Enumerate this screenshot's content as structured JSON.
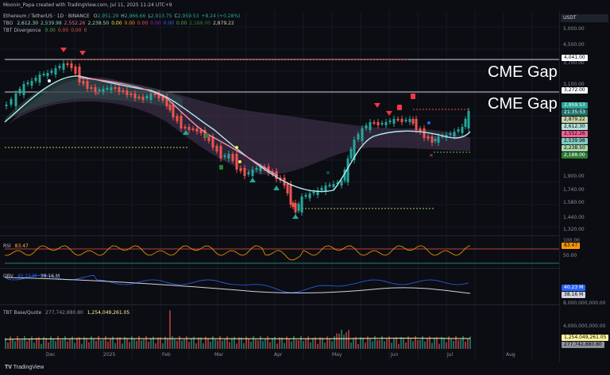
{
  "header": {
    "attribution": "Moonin_Papa created with TradingView.com, Jul 11, 2025 11:24 UTC+9"
  },
  "legend": {
    "symbol": "Ethereum / TetherUS · 1D · BINANCE",
    "ohlc": [
      {
        "k": "O",
        "v": "2,951.29"
      },
      {
        "k": "H",
        "v": "2,966.66"
      },
      {
        "k": "L",
        "v": "2,913.75"
      },
      {
        "k": "C",
        "v": "2,959.53"
      },
      {
        "k": "",
        "v": "+8.24 (+0.28%)"
      }
    ],
    "tbo_label": "TBO",
    "tbo_values": [
      "2,612.30",
      "2,539.98",
      "2,552.26",
      "2,238.50",
      "0.00",
      "0.00",
      "0.00",
      "0.00",
      "0.00",
      "0.00",
      "2,188.00",
      "2,879.22"
    ],
    "divergence_label": "TBT Divergence",
    "divergence_values": [
      "0.00",
      "0.00",
      "0.00",
      "0"
    ]
  },
  "price_axis": {
    "currency": "USDT",
    "ticks": [
      "5,000.00",
      "4,500.00",
      "3,700.00",
      "3,100.00",
      "2,700.00",
      "2,300.00",
      "1,900.00",
      "1,740.00",
      "1,580.00",
      "1,440.00",
      "1,320.00"
    ],
    "level_tags": [
      "4,041.00",
      "3,272.00"
    ],
    "value_tags": [
      {
        "v": "2,959.53",
        "bg": "#26a69a",
        "fg": "#ffffff"
      },
      {
        "v": "21:35:53",
        "bg": "#1d6e66",
        "fg": "#ffffff"
      },
      {
        "v": "2,879.22",
        "bg": "#c9d2a4",
        "fg": "#000000"
      },
      {
        "v": "2,612.30",
        "bg": "#b2dfdb",
        "fg": "#000000"
      },
      {
        "v": "2,552.26",
        "bg": "#f06292",
        "fg": "#000000"
      },
      {
        "v": "2,539.98",
        "bg": "#80cbc4",
        "fg": "#000000"
      },
      {
        "v": "2,238.50",
        "bg": "#a5d6a7",
        "fg": "#000000"
      },
      {
        "v": "2,188.00",
        "bg": "#2e7d32",
        "fg": "#ffffff"
      }
    ]
  },
  "annotations": {
    "cme_gap_1": "CME Gap",
    "cme_gap_2": "CME Gap"
  },
  "rsi": {
    "label": "RSI",
    "value": "83.47",
    "ticks": [
      "100.00",
      "50.00"
    ],
    "tag": "83.47"
  },
  "obv": {
    "label": "OBV",
    "value1": "40.23 M",
    "value2": "38.16 M",
    "tags": [
      "40.23 M",
      "38.16 M"
    ]
  },
  "tbt": {
    "label": "TBT Base/Quote",
    "value1": "277,742,880.80",
    "value2": "1,254,049,261.05",
    "ticks": [
      "8,000,000,000.00",
      "4,000,000,000.00"
    ],
    "tags": [
      "1,254,049,261.05",
      "277,742,880.80"
    ]
  },
  "time_axis": [
    "Dec",
    "2025",
    "Feb",
    "Mar",
    "Apr",
    "May",
    "Jun",
    "Jul",
    "Aug"
  ],
  "footer": {
    "brand": "TradingView"
  },
  "colors": {
    "up": "#26a69a",
    "down": "#ef5350",
    "background": "#0b0d12",
    "level_line": "#d1d4dc"
  }
}
